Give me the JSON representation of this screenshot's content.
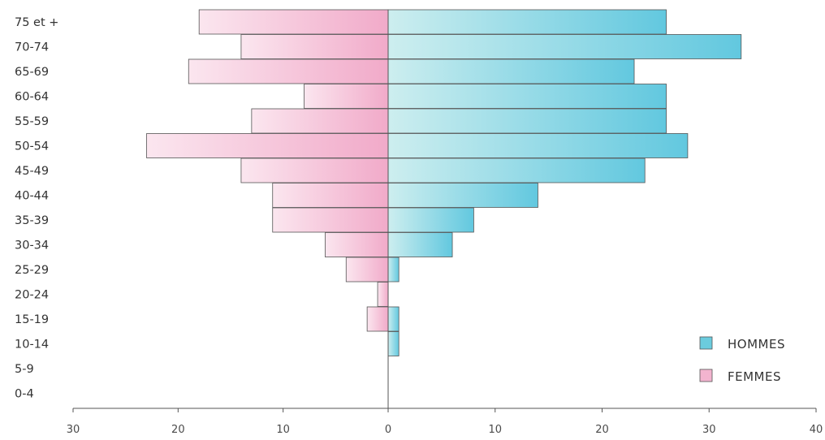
{
  "chart_data": {
    "type": "bar",
    "orientation": "horizontal",
    "categories": [
      "75 et +",
      "70-74",
      "65-69",
      "60-64",
      "55-59",
      "50-54",
      "45-49",
      "40-44",
      "35-39",
      "30-34",
      "25-29",
      "20-24",
      "15-19",
      "10-14",
      "5-9",
      "0-4"
    ],
    "series": [
      {
        "name": "HOMMES",
        "values": [
          26,
          33,
          23,
          26,
          26,
          28,
          24,
          14,
          8,
          6,
          1,
          0,
          1,
          1,
          0,
          0
        ]
      },
      {
        "name": "FEMMES",
        "values": [
          18,
          14,
          19,
          8,
          13,
          23,
          14,
          11,
          11,
          6,
          4,
          1,
          2,
          0,
          0,
          0
        ]
      }
    ],
    "xlim": [
      -30,
      40
    ],
    "xticks": [
      {
        "value": -30,
        "label": "30"
      },
      {
        "value": -20,
        "label": "20"
      },
      {
        "value": -10,
        "label": "10"
      },
      {
        "value": 0,
        "label": "0"
      },
      {
        "value": 10,
        "label": "10"
      },
      {
        "value": 20,
        "label": "20"
      },
      {
        "value": 30,
        "label": "30"
      },
      {
        "value": 40,
        "label": "40"
      }
    ],
    "title": "",
    "xlabel": "",
    "ylabel": "",
    "grid": false,
    "legend": "bottom-right",
    "colors": {
      "HOMMES": "#6bccde",
      "FEMMES": "#f3b4cf"
    }
  }
}
